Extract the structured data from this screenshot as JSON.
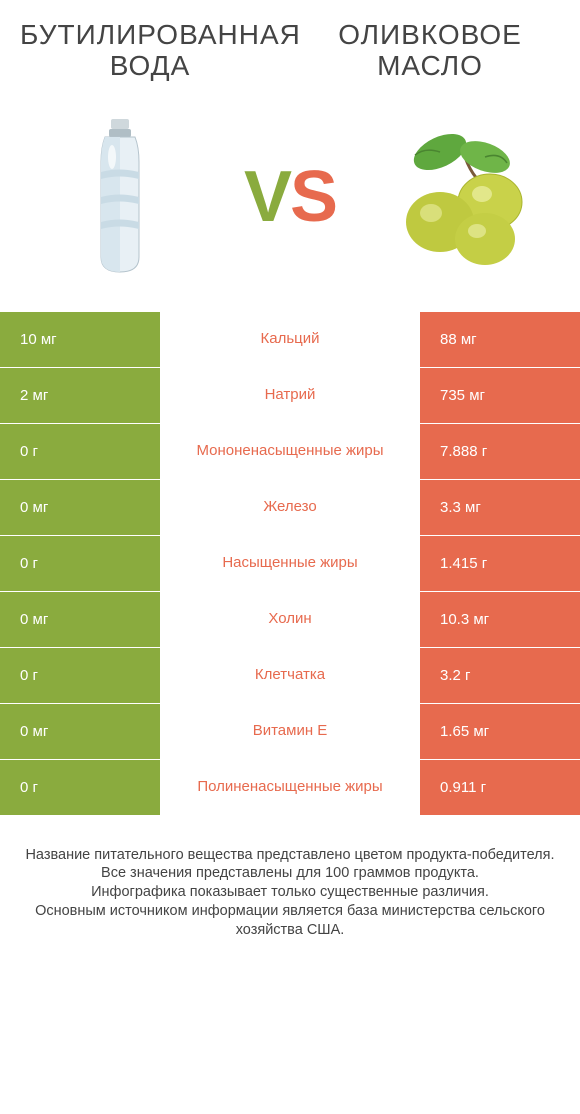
{
  "titles": {
    "left": "Бутилированная вода",
    "right": "Оливковое масло"
  },
  "vs": {
    "v": "V",
    "s": "S"
  },
  "colors": {
    "green": "#8aab3e",
    "orange": "#e76a4e",
    "mid_bg": "#ffffff",
    "text": "#444444"
  },
  "rows": [
    {
      "left": "10 мг",
      "label": "Кальций",
      "right": "88 мг",
      "winner": "right"
    },
    {
      "left": "2 мг",
      "label": "Натрий",
      "right": "735 мг",
      "winner": "right"
    },
    {
      "left": "0 г",
      "label": "Мононенасыщенные жиры",
      "right": "7.888 г",
      "winner": "right"
    },
    {
      "left": "0 мг",
      "label": "Железо",
      "right": "3.3 мг",
      "winner": "right"
    },
    {
      "left": "0 г",
      "label": "Насыщенные жиры",
      "right": "1.415 г",
      "winner": "right"
    },
    {
      "left": "0 мг",
      "label": "Холин",
      "right": "10.3 мг",
      "winner": "right"
    },
    {
      "left": "0 г",
      "label": "Клетчатка",
      "right": "3.2 г",
      "winner": "right"
    },
    {
      "left": "0 мг",
      "label": "Витамин E",
      "right": "1.65 мг",
      "winner": "right"
    },
    {
      "left": "0 г",
      "label": "Полиненасыщенные жиры",
      "right": "0.911 г",
      "winner": "right"
    }
  ],
  "footer": {
    "l1": "Название питательного вещества представлено цветом продукта-победителя.",
    "l2": "Все значения представлены для 100 граммов продукта.",
    "l3": "Инфографика показывает только существенные различия.",
    "l4": "Основным источником информации является база министерства сельского хозяйства США."
  }
}
